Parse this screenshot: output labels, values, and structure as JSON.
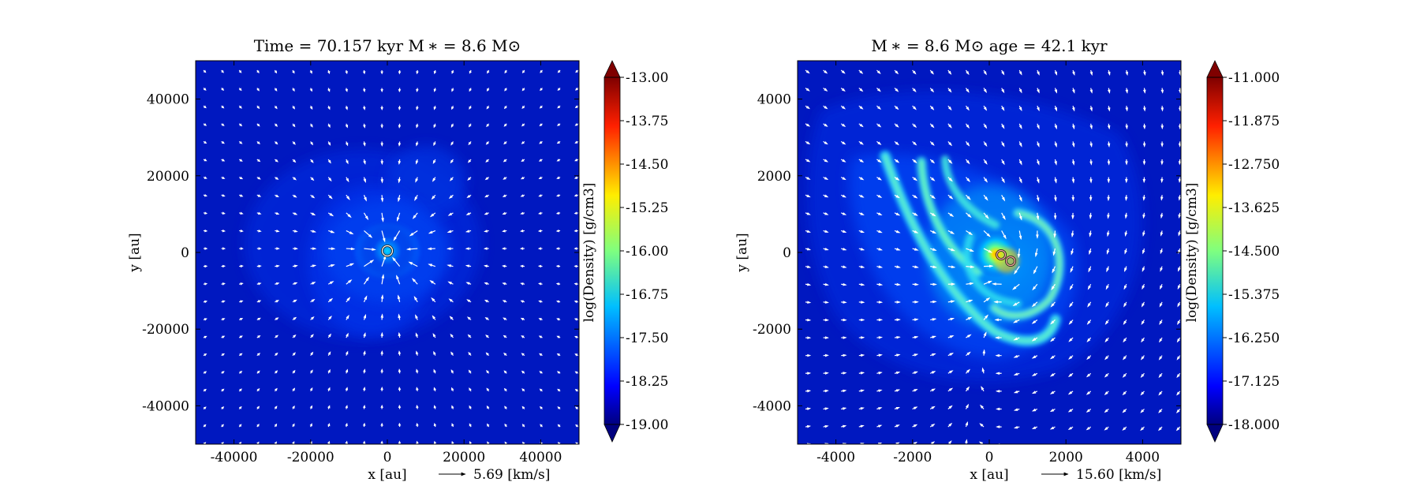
{
  "chart_data": [
    {
      "type": "heatmap",
      "title": "Time = 70.157 kyr    M ∗ = 8.6 M⊙",
      "xlabel": "x [au]",
      "ylabel": "y [au]",
      "xlim": [
        -50000,
        50000
      ],
      "ylim": [
        -50000,
        50000
      ],
      "xticks": [
        -40000,
        -20000,
        0,
        20000,
        40000
      ],
      "yticks": [
        -40000,
        -20000,
        0,
        20000,
        40000
      ],
      "xtick_labels": [
        "-40000",
        "-20000",
        "0",
        "20000",
        "40000"
      ],
      "ytick_labels": [
        "-40000",
        "-20000",
        "0",
        "20000",
        "40000"
      ],
      "vector_key": "5.69 [km/s]",
      "colorbar": {
        "label": "log(Density) [g/cm3]",
        "min": -19.0,
        "max": -13.0,
        "ticks": [
          "-13.00",
          "-13.75",
          "-14.50",
          "-15.25",
          "-16.00",
          "-16.75",
          "-17.50",
          "-18.25",
          "-19.00"
        ],
        "colormap": "jet",
        "extend": "both"
      },
      "sinks": [
        {
          "x": 0,
          "y": 0
        }
      ],
      "structure": "single central core, near-isotropic radial infall"
    },
    {
      "type": "heatmap",
      "title": "M ∗ = 8.6 M⊙          age = 42.1 kyr",
      "xlabel": "x [au]",
      "ylabel": "y [au]",
      "xlim": [
        -5000,
        5000
      ],
      "ylim": [
        -5000,
        5000
      ],
      "xticks": [
        -4000,
        -2000,
        0,
        2000,
        4000
      ],
      "yticks": [
        -4000,
        -2000,
        0,
        2000,
        4000
      ],
      "xtick_labels": [
        "-4000",
        "-2000",
        "0",
        "2000",
        "4000"
      ],
      "ytick_labels": [
        "-4000",
        "-2000",
        "0",
        "2000",
        "4000"
      ],
      "vector_key": "15.60 [km/s]",
      "colorbar": {
        "label": "log(Density) [g/cm3]",
        "min": -18.0,
        "max": -11.0,
        "ticks": [
          "-11.000",
          "-11.875",
          "-12.750",
          "-13.625",
          "-14.500",
          "-15.375",
          "-16.250",
          "-17.125",
          "-18.000"
        ],
        "colormap": "jet",
        "extend": "both"
      },
      "sinks": [
        {
          "x": 0,
          "y": 0
        },
        {
          "x": 230,
          "y": -150
        }
      ],
      "structure": "binary with spiral arms extending to upper-left"
    }
  ]
}
